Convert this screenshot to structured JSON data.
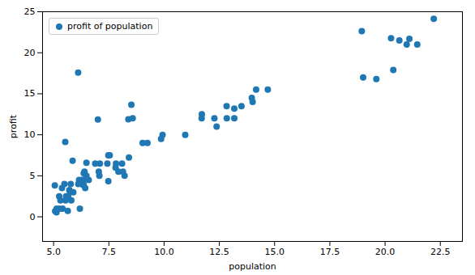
{
  "chart_data": {
    "type": "scatter",
    "x": [
      6.1101,
      5.5277,
      8.5186,
      7.0032,
      5.8598,
      8.3829,
      7.4764,
      8.5781,
      6.4862,
      5.0546,
      5.7107,
      14.164,
      5.734,
      8.4084,
      5.6407,
      5.3794,
      6.3654,
      5.1301,
      6.4296,
      7.0708,
      6.1891,
      20.27,
      5.4901,
      6.3261,
      5.5649,
      18.945,
      12.828,
      10.957,
      13.176,
      22.203,
      5.2524,
      6.5894,
      9.2482,
      5.8918,
      8.2111,
      7.9334,
      8.0959,
      5.6063,
      12.836,
      6.3534,
      5.4069,
      6.8825,
      11.708,
      5.7737,
      7.8247,
      7.0931,
      5.0702,
      5.8014,
      11.7,
      5.5416,
      7.5402,
      5.3077,
      7.4317,
      6.3483,
      6.2695,
      6.3993,
      5.2701,
      8.1373,
      12.275,
      5.6623,
      9.9301,
      9.0285,
      7.476,
      13.967,
      14.692,
      6.4835,
      6.1527,
      6.1161,
      9.8627,
      7.0442,
      5.1365,
      13.501,
      7.8044,
      13.176,
      12.376,
      14.006,
      19.007,
      20.645,
      20.978,
      21.099,
      21.456,
      20.371,
      19.605
    ],
    "series": [
      {
        "name": "profit of population",
        "color": "#1f77b4",
        "marker": "circle",
        "values": [
          17.592,
          9.1302,
          13.662,
          11.854,
          6.8233,
          11.886,
          4.3483,
          12.0,
          6.5987,
          3.8166,
          3.2522,
          15.505,
          3.1551,
          7.2258,
          0.71618,
          3.5129,
          5.3048,
          0.56077,
          3.5186,
          5.0,
          1.0,
          21.767,
          4.0,
          3.9,
          2.5,
          22.638,
          13.501,
          10.0,
          12.0,
          24.147,
          2.5,
          4.5,
          9.0,
          3.0,
          5.0,
          5.5,
          6.5,
          2.5,
          12.0,
          4.0,
          1.0,
          6.5,
          12.5,
          4.0,
          6.5,
          6.5,
          0.7,
          2.0,
          12.0,
          2.0,
          7.5,
          2.0,
          6.5,
          4.5,
          4.5,
          5.5,
          1.0,
          5.5,
          12.0,
          2.5,
          10.0,
          9.0,
          7.5,
          14.5,
          15.5,
          5.0,
          4.5,
          4.0,
          9.5,
          5.5,
          1.0,
          13.5,
          6.0,
          13.2,
          11.0,
          14.0,
          17.0,
          21.5,
          21.0,
          21.7,
          21.0,
          17.9,
          16.8
        ]
      }
    ],
    "xlabel": "population",
    "ylabel": "profit",
    "xlim": [
      4.5,
      23.5
    ],
    "ylim": [
      -3,
      25
    ],
    "xticks": [
      {
        "value": 5.0,
        "label": "5.0"
      },
      {
        "value": 7.5,
        "label": "7.5"
      },
      {
        "value": 10.0,
        "label": "10.0"
      },
      {
        "value": 12.5,
        "label": "12.5"
      },
      {
        "value": 15.0,
        "label": "15.0"
      },
      {
        "value": 17.5,
        "label": "17.5"
      },
      {
        "value": 20.0,
        "label": "20.0"
      },
      {
        "value": 22.5,
        "label": "22.5"
      }
    ],
    "yticks": [
      0,
      5,
      10,
      15,
      20,
      25
    ],
    "legend": "upper left",
    "grid": false
  }
}
